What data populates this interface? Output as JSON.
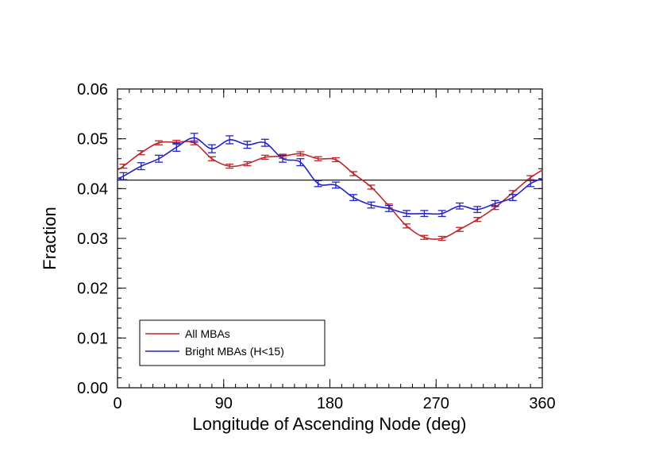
{
  "chart_data": {
    "type": "line",
    "title": "",
    "xlabel": "Longitude of Ascending Node (deg)",
    "ylabel": "Fraction",
    "xlim": [
      0,
      360
    ],
    "ylim": [
      0.0,
      0.06
    ],
    "x_ticks": [
      0,
      90,
      180,
      270,
      360
    ],
    "x_tick_labels": [
      "0",
      "90",
      "180",
      "270",
      "360"
    ],
    "y_ticks": [
      0.0,
      0.01,
      0.02,
      0.03,
      0.04,
      0.05,
      0.06
    ],
    "y_tick_labels": [
      "0.00",
      "0.01",
      "0.02",
      "0.03",
      "0.04",
      "0.05",
      "0.06"
    ],
    "reference_line": 0.0417,
    "legend_position": "bottom-left",
    "series": [
      {
        "name": "All MBAs",
        "color": "#c0262c",
        "x": [
          5,
          20,
          35,
          50,
          65,
          80,
          95,
          110,
          125,
          140,
          155,
          170,
          185,
          200,
          215,
          230,
          245,
          260,
          275,
          290,
          305,
          320,
          335,
          350
        ],
        "values": [
          0.0445,
          0.0472,
          0.0492,
          0.0493,
          0.0492,
          0.046,
          0.0445,
          0.045,
          0.0463,
          0.0465,
          0.047,
          0.046,
          0.0458,
          0.043,
          0.0403,
          0.0365,
          0.0325,
          0.0302,
          0.03,
          0.0318,
          0.0338,
          0.0362,
          0.0392,
          0.0422
        ],
        "errors": [
          0.0004,
          0.0004,
          0.0004,
          0.0004,
          0.0004,
          0.0004,
          0.0004,
          0.0004,
          0.0004,
          0.0004,
          0.0004,
          0.0004,
          0.0004,
          0.0004,
          0.0004,
          0.0004,
          0.0004,
          0.0004,
          0.0004,
          0.0004,
          0.0004,
          0.0004,
          0.0004,
          0.0004
        ]
      },
      {
        "name": "Bright MBAs (H<15)",
        "color": "#2222cc",
        "x": [
          5,
          20,
          35,
          50,
          65,
          80,
          95,
          110,
          125,
          140,
          155,
          170,
          185,
          200,
          215,
          230,
          245,
          260,
          275,
          290,
          305,
          320,
          335,
          350
        ],
        "values": [
          0.0425,
          0.0445,
          0.046,
          0.0483,
          0.0502,
          0.048,
          0.0498,
          0.0488,
          0.0492,
          0.046,
          0.0453,
          0.041,
          0.0407,
          0.0382,
          0.0367,
          0.036,
          0.035,
          0.035,
          0.035,
          0.0365,
          0.0358,
          0.037,
          0.0382,
          0.041
        ],
        "errors": [
          0.0007,
          0.0007,
          0.0007,
          0.0008,
          0.0009,
          0.0008,
          0.0008,
          0.0007,
          0.0007,
          0.0007,
          0.0007,
          0.0006,
          0.0006,
          0.0006,
          0.0006,
          0.0006,
          0.0006,
          0.0006,
          0.0006,
          0.0006,
          0.0006,
          0.0006,
          0.0006,
          0.0006
        ]
      }
    ]
  }
}
